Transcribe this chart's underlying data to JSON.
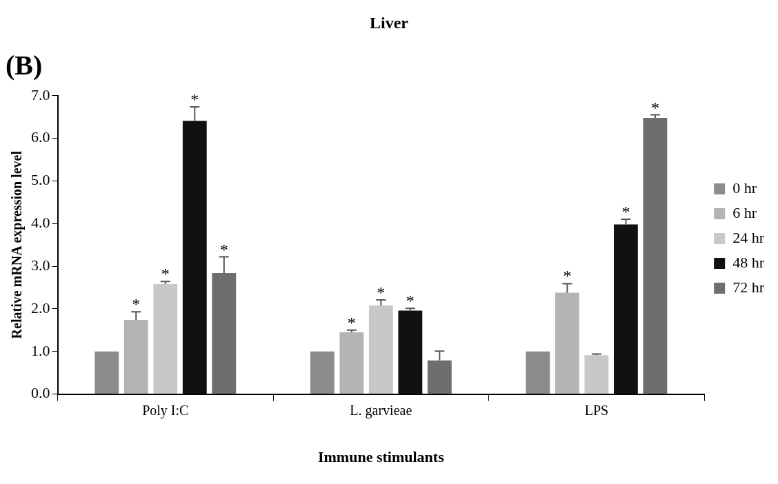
{
  "chart_data": {
    "type": "bar",
    "title": "Liver",
    "xlabel": "Immune stimulants",
    "ylabel": "Relative mRNA expression level",
    "categories": [
      "Poly I:C",
      "L. garvieae",
      "LPS"
    ],
    "series": [
      {
        "name": "0 hr",
        "color": "#8c8c8c",
        "values": [
          1.0,
          1.0,
          1.0
        ],
        "errors": [
          null,
          null,
          null
        ]
      },
      {
        "name": "6 hr",
        "color": "#b4b4b4",
        "values": [
          1.74,
          1.45,
          2.38
        ],
        "errors": [
          0.19,
          0.05,
          0.21
        ],
        "value_labels": [
          "*",
          "*",
          "*"
        ]
      },
      {
        "name": "24 hr",
        "color": "#c8c8c8",
        "values": [
          2.58,
          2.08,
          0.91
        ],
        "errors": [
          0.06,
          0.13,
          0.03
        ],
        "value_labels": [
          "*",
          "*",
          null
        ]
      },
      {
        "name": "48 hr",
        "color": "#111111",
        "values": [
          6.41,
          1.96,
          3.98
        ],
        "errors": [
          0.33,
          0.05,
          0.12
        ],
        "value_labels": [
          "*",
          "*",
          "*"
        ]
      },
      {
        "name": "72 hr",
        "color": "#6e6e6e",
        "values": [
          2.84,
          0.79,
          6.48
        ],
        "errors": [
          0.38,
          0.22,
          0.07
        ],
        "value_labels": [
          "*",
          null,
          "*"
        ]
      }
    ],
    "ylim": [
      0,
      7
    ],
    "yticks": [
      {
        "value": 0,
        "label": "0.0"
      },
      {
        "value": 1,
        "label": "1.0"
      },
      {
        "value": 2,
        "label": "2.0"
      },
      {
        "value": 3,
        "label": "3.0"
      },
      {
        "value": 4,
        "label": "4.0"
      },
      {
        "value": 5,
        "label": "5.0"
      },
      {
        "value": 6,
        "label": "6.0"
      },
      {
        "value": 7,
        "label": "7.0"
      }
    ],
    "grid": false,
    "legend": "right",
    "annotations": [
      "(B)"
    ]
  }
}
